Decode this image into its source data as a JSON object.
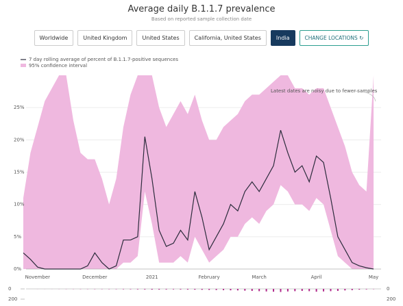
{
  "title": "Average daily B.1.1.7 prevalence",
  "subtitle": "Based on reported sample collection date",
  "controls": {
    "locations": [
      "Worldwide",
      "United Kingdom",
      "United States",
      "California, United States",
      "India"
    ],
    "selected": 4,
    "action": "CHANGE LOCATIONS"
  },
  "chart_data": {
    "type": "line",
    "annotation": "Latest dates are noisy due to fewer samples",
    "categories": [
      null,
      null,
      "November",
      null,
      null,
      null,
      null,
      null,
      null,
      null,
      "December",
      null,
      null,
      null,
      null,
      null,
      null,
      null,
      "2021",
      null,
      null,
      null,
      null,
      null,
      null,
      null,
      "February",
      null,
      null,
      null,
      null,
      null,
      null,
      "March",
      null,
      null,
      null,
      null,
      null,
      null,
      null,
      "April",
      null,
      null,
      null,
      null,
      null,
      null,
      null,
      "May"
    ],
    "series": [
      {
        "name": "7 day rolling average of percent of B.1.1.7-positive sequences",
        "color": "#2b2b3b",
        "values": [
          2.5,
          1.5,
          0.3,
          0,
          0,
          0,
          0,
          0,
          0,
          0.5,
          2.5,
          1,
          0,
          0.5,
          4.5,
          4.5,
          5,
          20.5,
          14,
          6,
          3.5,
          4,
          6,
          4.5,
          12,
          8,
          3,
          5,
          7,
          10,
          9,
          12,
          13.5,
          12,
          14,
          16,
          21.5,
          18,
          15,
          16,
          13.5,
          17.5,
          16.5,
          11,
          5,
          3,
          1,
          0.5,
          0.2,
          0
        ]
      }
    ],
    "band": {
      "name": "95% confidence interval",
      "color": "#efb8df",
      "upper": [
        11,
        18,
        22,
        26,
        28,
        30,
        30,
        23,
        18,
        17,
        17,
        14,
        10,
        14,
        22,
        27,
        30,
        30,
        30,
        25,
        22,
        24,
        26,
        24,
        27,
        23,
        20,
        20,
        22,
        23,
        24,
        26,
        27,
        27,
        28,
        29,
        30,
        30,
        28,
        28,
        27,
        28,
        28,
        25,
        22,
        19,
        15,
        13,
        12,
        30
      ],
      "lower": [
        0,
        0,
        0,
        0,
        0,
        0,
        0,
        0,
        0,
        0,
        0,
        0,
        0,
        0,
        1,
        1,
        2,
        12,
        7,
        1,
        1,
        1,
        2,
        1,
        5,
        3,
        1,
        2,
        3,
        5,
        5,
        7,
        8,
        7,
        9,
        10,
        13,
        12,
        10,
        10,
        9,
        11,
        10,
        6,
        2,
        1,
        0,
        0,
        0,
        0
      ]
    },
    "ylim": [
      0,
      30
    ],
    "yticks": [
      {
        "value": 0,
        "label": "0%"
      },
      {
        "value": 5,
        "label": "5%"
      },
      {
        "value": 10,
        "label": "10%"
      },
      {
        "value": 15,
        "label": "15%"
      },
      {
        "value": 20,
        "label": "20%"
      },
      {
        "value": 25,
        "label": "25%"
      }
    ],
    "grid": true,
    "samples": {
      "color": "#b0288a",
      "ylim": [
        0,
        200
      ],
      "yticks": [
        0,
        200
      ],
      "values": [
        0,
        0,
        1,
        1,
        1,
        2,
        3,
        3,
        4,
        4,
        5,
        5,
        6,
        6,
        8,
        8,
        10,
        12,
        15,
        14,
        12,
        10,
        12,
        14,
        16,
        18,
        20,
        22,
        25,
        28,
        30,
        35,
        40,
        45,
        50,
        55,
        60,
        50,
        45,
        40,
        45,
        55,
        50,
        45,
        40,
        30,
        25,
        15,
        10,
        5
      ]
    }
  }
}
